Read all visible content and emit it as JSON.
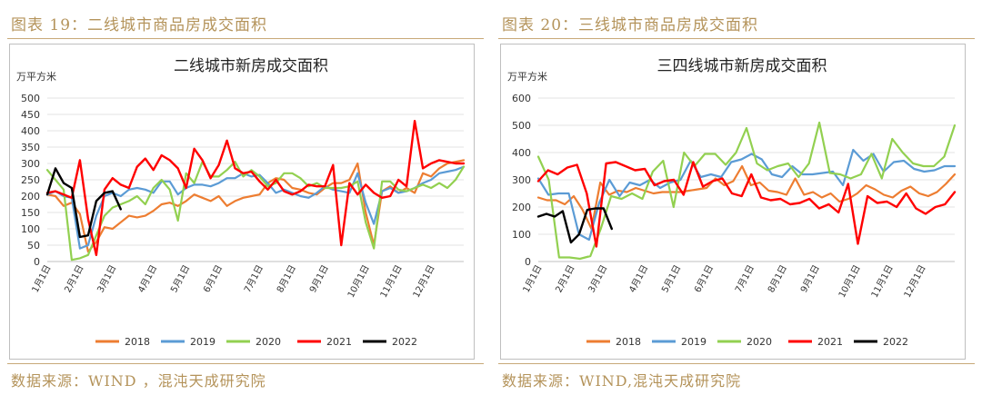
{
  "left": {
    "figure_title": "图表 19：二线城市商品房成交面积",
    "source": "数据来源：WIND ，混沌天成研究院",
    "chart_data": {
      "type": "line",
      "title": "二线城市新房成交面积",
      "unit_label": "万平方米",
      "ylim": [
        0,
        500
      ],
      "yticks": [
        "0",
        "50",
        "100",
        "150",
        "200",
        "250",
        "300",
        "350",
        "400",
        "450",
        "500"
      ],
      "week_range": [
        1,
        52
      ],
      "xtick_weeks": [
        1,
        5,
        9,
        14,
        18,
        22,
        27,
        31,
        35,
        40,
        44,
        48
      ],
      "xtick_labels": [
        "1月1日",
        "2月1日",
        "3月1日",
        "4月1日",
        "5月1日",
        "6月1日",
        "7月1日",
        "8月1日",
        "9月1日",
        "10月1日",
        "11月1日",
        "12月1日"
      ],
      "series": [
        {
          "name": "2018",
          "color": "#ed7d31",
          "values": [
            205,
            200,
            170,
            180,
            145,
            30,
            60,
            105,
            100,
            120,
            140,
            135,
            140,
            155,
            175,
            180,
            170,
            185,
            205,
            195,
            185,
            200,
            170,
            185,
            195,
            200,
            205,
            240,
            255,
            250,
            225,
            220,
            210,
            205,
            225,
            240,
            240,
            250,
            300,
            150,
            50,
            215,
            230,
            210,
            225,
            210,
            270,
            260,
            285,
            300,
            305,
            310
          ]
        },
        {
          "name": "2019",
          "color": "#5b9bd5",
          "values": [
            205,
            215,
            200,
            195,
            40,
            50,
            140,
            200,
            210,
            200,
            220,
            225,
            220,
            210,
            245,
            245,
            205,
            225,
            235,
            235,
            230,
            240,
            255,
            255,
            270,
            260,
            265,
            240,
            210,
            220,
            210,
            200,
            195,
            210,
            230,
            220,
            215,
            210,
            270,
            180,
            115,
            215,
            225,
            210,
            215,
            225,
            240,
            250,
            270,
            275,
            280,
            290
          ]
        },
        {
          "name": "2020",
          "color": "#92d050",
          "values": [
            280,
            250,
            220,
            5,
            10,
            20,
            80,
            140,
            165,
            175,
            185,
            200,
            175,
            225,
            250,
            220,
            125,
            270,
            240,
            305,
            260,
            260,
            280,
            305,
            260,
            280,
            260,
            230,
            240,
            270,
            270,
            255,
            230,
            240,
            225,
            225,
            225,
            230,
            245,
            120,
            40,
            245,
            245,
            220,
            215,
            225,
            235,
            225,
            240,
            225,
            250,
            290
          ]
        },
        {
          "name": "2021",
          "color": "#ff0000",
          "values": [
            210,
            215,
            205,
            195,
            310,
            130,
            20,
            220,
            255,
            235,
            225,
            290,
            315,
            280,
            325,
            310,
            285,
            225,
            345,
            310,
            255,
            295,
            370,
            285,
            270,
            275,
            245,
            220,
            250,
            215,
            205,
            215,
            235,
            230,
            230,
            295,
            50,
            240,
            205,
            235,
            210,
            195,
            200,
            250,
            230,
            430,
            285,
            300,
            310,
            305,
            300,
            300
          ]
        },
        {
          "name": "2022",
          "color": "#000000",
          "values": [
            205,
            285,
            240,
            225,
            75,
            80,
            185,
            210,
            215,
            160
          ]
        }
      ]
    }
  },
  "right": {
    "figure_title": "图表 20：三线城市商品房成交面积",
    "source": "数据来源：WIND,混沌天成研究院",
    "chart_data": {
      "type": "line",
      "title": "三四线城市新房成交面积",
      "unit_label": "万平方米",
      "ylim": [
        0,
        600
      ],
      "yticks": [
        "0",
        "100",
        "200",
        "300",
        "400",
        "500",
        "600"
      ],
      "week_range": [
        1,
        52
      ],
      "xtick_weeks": [
        1,
        5,
        9,
        14,
        18,
        22,
        27,
        31,
        35,
        40,
        44,
        48
      ],
      "xtick_labels": [
        "1月1日",
        "2月1日",
        "3月1日",
        "4月1日",
        "5月1日",
        "6月1日",
        "7月1日",
        "8月1日",
        "9月1日",
        "10月1日",
        "11月1日",
        "12月1日"
      ],
      "series": [
        {
          "name": "2018",
          "color": "#ed7d31",
          "values": [
            235,
            225,
            225,
            210,
            240,
            190,
            120,
            290,
            245,
            260,
            255,
            270,
            260,
            250,
            255,
            255,
            255,
            260,
            265,
            270,
            305,
            280,
            295,
            350,
            280,
            290,
            260,
            255,
            245,
            305,
            245,
            255,
            235,
            250,
            220,
            230,
            250,
            280,
            265,
            245,
            235,
            260,
            275,
            250,
            240,
            255,
            285,
            320
          ]
        },
        {
          "name": "2019",
          "color": "#5b9bd5",
          "values": [
            305,
            245,
            250,
            250,
            100,
            80,
            215,
            300,
            240,
            290,
            280,
            300,
            270,
            290,
            300,
            370,
            310,
            320,
            310,
            365,
            375,
            395,
            375,
            320,
            310,
            350,
            320,
            320,
            325,
            330,
            280,
            410,
            370,
            395,
            330,
            365,
            370,
            340,
            330,
            335,
            350,
            350
          ]
        },
        {
          "name": "2020",
          "color": "#92d050",
          "values": [
            385,
            300,
            15,
            15,
            10,
            20,
            120,
            240,
            230,
            250,
            230,
            330,
            370,
            200,
            400,
            350,
            395,
            395,
            355,
            400,
            490,
            360,
            335,
            350,
            360,
            310,
            360,
            510,
            325,
            320,
            305,
            320,
            395,
            305,
            450,
            400,
            360,
            350,
            350,
            385,
            500
          ]
        },
        {
          "name": "2021",
          "color": "#ff0000",
          "values": [
            295,
            335,
            320,
            345,
            355,
            250,
            55,
            360,
            365,
            350,
            335,
            340,
            280,
            295,
            300,
            245,
            365,
            275,
            295,
            305,
            250,
            240,
            320,
            235,
            225,
            230,
            210,
            215,
            230,
            195,
            210,
            180,
            285,
            65,
            240,
            215,
            220,
            200,
            250,
            195,
            175,
            200,
            210,
            255
          ]
        },
        {
          "name": "2022",
          "color": "#000000",
          "values": [
            165,
            175,
            165,
            185,
            70,
            100,
            190,
            195,
            195,
            120
          ]
        }
      ]
    }
  }
}
